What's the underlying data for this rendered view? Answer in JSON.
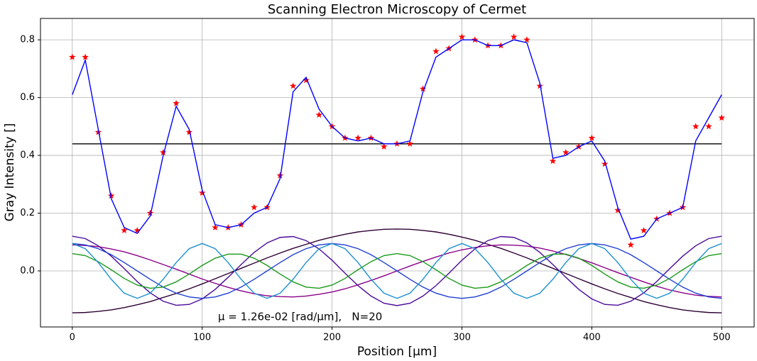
{
  "chart_data": {
    "type": "line",
    "title": "Scanning Electron Microscopy of Cermet",
    "x_label": "Position [μm]",
    "y_label": "Gray Intensity []",
    "annotation": "μ = 1.26e-02 [rad/μm],   N=20",
    "xlim": [
      -24.5,
      525
    ],
    "ylim": [
      -0.194,
      0.874
    ],
    "xticks": [
      0,
      100,
      200,
      300,
      400,
      500
    ],
    "yticks": [
      {
        "value": 0,
        "label": "0.0"
      },
      0.2,
      0.4,
      0.6,
      0.8
    ],
    "grid": true,
    "hline": {
      "y": 0.44,
      "color": "#000000"
    },
    "x": [
      0,
      10,
      20,
      30,
      40,
      50,
      60,
      70,
      80,
      90,
      100,
      110,
      120,
      130,
      140,
      150,
      160,
      170,
      180,
      190,
      200,
      210,
      220,
      230,
      240,
      250,
      260,
      270,
      280,
      290,
      300,
      310,
      320,
      330,
      340,
      350,
      360,
      370,
      380,
      390,
      400,
      410,
      420,
      430,
      440,
      450,
      460,
      470,
      480,
      490,
      500
    ],
    "series": [
      {
        "color": "#2d0033",
        "values": [
          -0.145,
          -0.144,
          -0.14,
          -0.135,
          -0.127,
          -0.117,
          -0.106,
          -0.092,
          -0.078,
          -0.062,
          -0.045,
          -0.027,
          -0.009,
          0.009,
          0.027,
          0.045,
          0.062,
          0.078,
          0.092,
          0.106,
          0.117,
          0.127,
          0.135,
          0.14,
          0.144,
          0.145,
          0.144,
          0.14,
          0.135,
          0.127,
          0.117,
          0.106,
          0.092,
          0.078,
          0.062,
          0.045,
          0.027,
          0.009,
          -0.009,
          -0.027,
          -0.045,
          -0.062,
          -0.078,
          -0.092,
          -0.106,
          -0.117,
          -0.127,
          -0.135,
          -0.14,
          -0.144,
          -0.145
        ]
      },
      {
        "color": "#8b008b",
        "values": [
          0.09,
          0.088,
          0.084,
          0.076,
          0.066,
          0.053,
          0.038,
          0.022,
          0.006,
          -0.011,
          -0.028,
          -0.043,
          -0.057,
          -0.069,
          -0.079,
          -0.086,
          -0.089,
          -0.09,
          -0.087,
          -0.081,
          -0.073,
          -0.062,
          -0.048,
          -0.033,
          -0.017,
          0,
          0.017,
          0.033,
          0.048,
          0.062,
          0.073,
          0.081,
          0.087,
          0.09,
          0.089,
          0.086,
          0.079,
          0.069,
          0.057,
          0.043,
          0.028,
          0.011,
          -0.006,
          -0.022,
          -0.038,
          -0.053,
          -0.066,
          -0.076,
          -0.084,
          -0.088,
          -0.09
        ]
      },
      {
        "color": "#4b0a9a",
        "values": [
          0.12,
          0.112,
          0.087,
          0.051,
          0.008,
          -0.037,
          -0.076,
          -0.105,
          -0.119,
          -0.116,
          -0.097,
          -0.064,
          -0.022,
          0.022,
          0.064,
          0.097,
          0.116,
          0.119,
          0.105,
          0.076,
          0.037,
          -0.008,
          -0.051,
          -0.087,
          -0.112,
          -0.12,
          -0.112,
          -0.087,
          -0.051,
          -0.008,
          0.037,
          0.076,
          0.105,
          0.119,
          0.116,
          0.097,
          0.064,
          0.022,
          -0.022,
          -0.064,
          -0.097,
          -0.116,
          -0.119,
          -0.105,
          -0.076,
          -0.037,
          0.008,
          0.051,
          0.087,
          0.112,
          0.12
        ]
      },
      {
        "color": "#1f3fd0",
        "values": [
          0.095,
          0.09,
          0.077,
          0.056,
          0.029,
          0,
          -0.029,
          -0.056,
          -0.077,
          -0.09,
          -0.095,
          -0.09,
          -0.077,
          -0.056,
          -0.029,
          0,
          0.029,
          0.056,
          0.077,
          0.09,
          0.095,
          0.09,
          0.077,
          0.056,
          0.029,
          0,
          -0.029,
          -0.056,
          -0.077,
          -0.09,
          -0.095,
          -0.09,
          -0.077,
          -0.056,
          -0.029,
          0,
          0.029,
          0.056,
          0.077,
          0.09,
          0.095,
          0.09,
          0.077,
          0.056,
          0.029,
          0,
          -0.029,
          -0.056,
          -0.077,
          -0.09,
          -0.095
        ]
      },
      {
        "color": "#1a9a1a",
        "values": [
          0.06,
          0.053,
          0.032,
          0.004,
          -0.026,
          -0.049,
          -0.06,
          -0.056,
          -0.038,
          -0.011,
          0.019,
          0.044,
          0.058,
          0.058,
          0.044,
          0.019,
          -0.011,
          -0.038,
          -0.056,
          -0.06,
          -0.049,
          -0.026,
          0.004,
          0.032,
          0.053,
          0.06,
          0.053,
          0.032,
          0.004,
          -0.026,
          -0.049,
          -0.06,
          -0.056,
          -0.038,
          -0.011,
          0.019,
          0.044,
          0.058,
          0.058,
          0.044,
          0.019,
          -0.011,
          -0.038,
          -0.056,
          -0.06,
          -0.049,
          -0.026,
          0.004,
          0.032,
          0.053,
          0.06
        ]
      },
      {
        "color": "#1e90d0",
        "values": [
          0.095,
          0.077,
          0.029,
          -0.029,
          -0.077,
          -0.095,
          -0.077,
          -0.029,
          0.029,
          0.077,
          0.095,
          0.077,
          0.029,
          -0.029,
          -0.077,
          -0.095,
          -0.077,
          -0.029,
          0.029,
          0.077,
          0.095,
          0.077,
          0.029,
          -0.029,
          -0.077,
          -0.095,
          -0.077,
          -0.029,
          0.029,
          0.077,
          0.095,
          0.077,
          0.029,
          -0.029,
          -0.077,
          -0.095,
          -0.077,
          -0.029,
          0.029,
          0.077,
          0.095,
          0.077,
          0.029,
          -0.029,
          -0.077,
          -0.095,
          -0.077,
          -0.029,
          0.029,
          0.077,
          0.095
        ]
      },
      {
        "color": "#ff0000",
        "marker": "star",
        "values": [
          0.74,
          0.74,
          0.48,
          0.26,
          0.14,
          0.14,
          0.2,
          0.41,
          0.58,
          0.48,
          0.27,
          0.15,
          0.15,
          0.16,
          0.22,
          0.22,
          0.33,
          0.64,
          0.66,
          0.54,
          0.5,
          0.46,
          0.46,
          0.46,
          0.43,
          0.44,
          0.44,
          0.63,
          0.76,
          0.77,
          0.81,
          0.8,
          0.78,
          0.78,
          0.81,
          0.8,
          0.64,
          0.38,
          0.41,
          0.43,
          0.46,
          0.37,
          0.21,
          0.09,
          0.14,
          0.18,
          0.2,
          0.22,
          0.5,
          0.5,
          0.53
        ]
      },
      {
        "color": "#0000ff",
        "values": [
          0.61,
          0.73,
          0.49,
          0.25,
          0.15,
          0.13,
          0.19,
          0.4,
          0.57,
          0.49,
          0.28,
          0.16,
          0.15,
          0.16,
          0.2,
          0.22,
          0.32,
          0.62,
          0.67,
          0.56,
          0.5,
          0.46,
          0.45,
          0.46,
          0.44,
          0.44,
          0.45,
          0.62,
          0.74,
          0.77,
          0.8,
          0.8,
          0.78,
          0.78,
          0.8,
          0.79,
          0.65,
          0.39,
          0.4,
          0.43,
          0.45,
          0.38,
          0.22,
          0.11,
          0.12,
          0.18,
          0.2,
          0.22,
          0.45,
          0.53,
          0.61
        ]
      }
    ]
  }
}
